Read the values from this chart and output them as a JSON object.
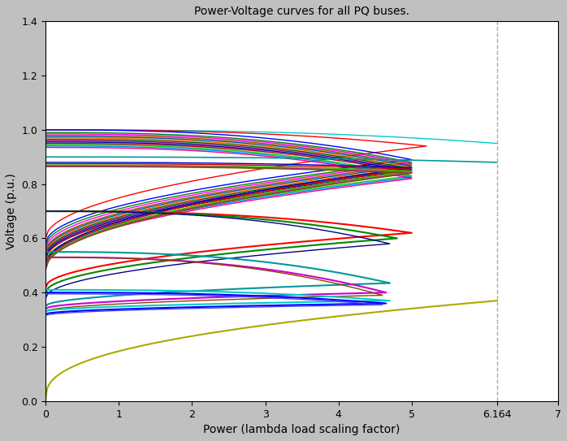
{
  "title": "Power-Voltage curves for all PQ buses.",
  "xlabel": "Power (lambda load scaling factor)",
  "ylabel": "Voltage (p.u.)",
  "xlim": [
    0,
    7
  ],
  "ylim": [
    0,
    1.4
  ],
  "xticks": [
    0,
    1,
    2,
    3,
    4,
    5,
    6.164,
    7
  ],
  "xticklabels": [
    "0",
    "1",
    "2",
    "3",
    "4",
    "5",
    "6.164",
    "7"
  ],
  "yticks": [
    0,
    0.2,
    0.4,
    0.6,
    0.8,
    1.0,
    1.2,
    1.4
  ],
  "vline_x": 6.164,
  "background_color": "#c0c0c0",
  "axes_bg": "#ffffff",
  "curves": [
    {
      "v0": 1.0,
      "v_nose": 0.95,
      "lambda_max": 6.164,
      "color": "#00cccc",
      "lw": 1.0,
      "upper_only": true
    },
    {
      "v0": 1.0,
      "v_nose": 0.94,
      "lambda_max": 5.2,
      "color": "#ff0000",
      "lw": 1.0,
      "upper_only": false,
      "v_low": 0.6
    },
    {
      "v0": 1.0,
      "v_nose": 0.89,
      "lambda_max": 5.0,
      "color": "#0000ff",
      "lw": 1.0,
      "upper_only": false,
      "v_low": 0.58
    },
    {
      "v0": 0.99,
      "v_nose": 0.88,
      "lambda_max": 5.0,
      "color": "#008800",
      "lw": 1.0,
      "upper_only": false,
      "v_low": 0.57
    },
    {
      "v0": 0.985,
      "v_nose": 0.875,
      "lambda_max": 5.0,
      "color": "#ff00ff",
      "lw": 1.0,
      "upper_only": false,
      "v_low": 0.56
    },
    {
      "v0": 0.98,
      "v_nose": 0.87,
      "lambda_max": 5.0,
      "color": "#aa5500",
      "lw": 1.0,
      "upper_only": false,
      "v_low": 0.55
    },
    {
      "v0": 0.975,
      "v_nose": 0.865,
      "lambda_max": 5.0,
      "color": "#0055aa",
      "lw": 1.0,
      "upper_only": false,
      "v_low": 0.545
    },
    {
      "v0": 0.97,
      "v_nose": 0.86,
      "lambda_max": 5.0,
      "color": "#ff6600",
      "lw": 1.0,
      "upper_only": false,
      "v_low": 0.54
    },
    {
      "v0": 0.965,
      "v_nose": 0.855,
      "lambda_max": 5.0,
      "color": "#006600",
      "lw": 1.0,
      "upper_only": false,
      "v_low": 0.535
    },
    {
      "v0": 0.96,
      "v_nose": 0.85,
      "lambda_max": 5.0,
      "color": "#880088",
      "lw": 1.0,
      "upper_only": false,
      "v_low": 0.53
    },
    {
      "v0": 0.955,
      "v_nose": 0.845,
      "lambda_max": 5.0,
      "color": "#0000aa",
      "lw": 1.0,
      "upper_only": false,
      "v_low": 0.525
    },
    {
      "v0": 0.95,
      "v_nose": 0.84,
      "lambda_max": 5.0,
      "color": "#aa0000",
      "lw": 1.0,
      "upper_only": false,
      "v_low": 0.52
    },
    {
      "v0": 0.945,
      "v_nose": 0.83,
      "lambda_max": 5.0,
      "color": "#00cc00",
      "lw": 1.0,
      "upper_only": false,
      "v_low": 0.51
    },
    {
      "v0": 0.94,
      "v_nose": 0.825,
      "lambda_max": 5.0,
      "color": "#0088ff",
      "lw": 1.0,
      "upper_only": false,
      "v_low": 0.505
    },
    {
      "v0": 0.935,
      "v_nose": 0.82,
      "lambda_max": 5.0,
      "color": "#ff0088",
      "lw": 1.0,
      "upper_only": false,
      "v_low": 0.5
    },
    {
      "v0": 0.9,
      "v_nose": 0.88,
      "lambda_max": 6.164,
      "color": "#009999",
      "lw": 1.2,
      "upper_only": true
    },
    {
      "v0": 0.88,
      "v_nose": 0.86,
      "lambda_max": 5.0,
      "color": "#0000cc",
      "lw": 1.0,
      "upper_only": false,
      "v_low": 0.5
    },
    {
      "v0": 0.875,
      "v_nose": 0.855,
      "lambda_max": 5.0,
      "color": "#cc0000",
      "lw": 1.0,
      "upper_only": false,
      "v_low": 0.495
    },
    {
      "v0": 0.87,
      "v_nose": 0.848,
      "lambda_max": 5.0,
      "color": "#00cc00",
      "lw": 1.0,
      "upper_only": false,
      "v_low": 0.49
    },
    {
      "v0": 0.868,
      "v_nose": 0.845,
      "lambda_max": 5.0,
      "color": "#999900",
      "lw": 1.0,
      "upper_only": false,
      "v_low": 0.488
    },
    {
      "v0": 0.866,
      "v_nose": 0.842,
      "lambda_max": 5.0,
      "color": "#cc00cc",
      "lw": 1.0,
      "upper_only": false,
      "v_low": 0.486
    },
    {
      "v0": 0.864,
      "v_nose": 0.84,
      "lambda_max": 5.0,
      "color": "#666600",
      "lw": 1.0,
      "upper_only": false,
      "v_low": 0.484
    },
    {
      "v0": 0.7,
      "v_nose": 0.62,
      "lambda_max": 5.0,
      "color": "#ff0000",
      "lw": 1.5,
      "upper_only": false,
      "v_low": 0.42
    },
    {
      "v0": 0.7,
      "v_nose": 0.6,
      "lambda_max": 4.8,
      "color": "#008800",
      "lw": 1.5,
      "upper_only": false,
      "v_low": 0.4
    },
    {
      "v0": 0.7,
      "v_nose": 0.58,
      "lambda_max": 4.7,
      "color": "#000088",
      "lw": 1.0,
      "upper_only": false,
      "v_low": 0.38
    },
    {
      "v0": 0.55,
      "v_nose": 0.435,
      "lambda_max": 4.7,
      "color": "#009999",
      "lw": 1.5,
      "upper_only": false,
      "v_low": 0.35
    },
    {
      "v0": 0.53,
      "v_nose": 0.4,
      "lambda_max": 4.65,
      "color": "#cc00cc",
      "lw": 1.5,
      "upper_only": false,
      "v_low": 0.34
    },
    {
      "v0": 0.53,
      "v_nose": 0.39,
      "lambda_max": 4.6,
      "color": "#884400",
      "lw": 1.0,
      "upper_only": false,
      "v_low": 0.33
    },
    {
      "v0": 0.41,
      "v_nose": 0.37,
      "lambda_max": 4.7,
      "color": "#00cccc",
      "lw": 1.5,
      "upper_only": false,
      "v_low": 0.33
    },
    {
      "v0": 0.4,
      "v_nose": 0.36,
      "lambda_max": 4.65,
      "color": "#0000ff",
      "lw": 1.5,
      "upper_only": false,
      "v_low": 0.32
    },
    {
      "v0": 0.395,
      "v_nose": 0.355,
      "lambda_max": 4.6,
      "color": "#4444ff",
      "lw": 1.0,
      "upper_only": false,
      "v_low": 0.315
    },
    {
      "v0": 0.01,
      "v_nose": 0.37,
      "lambda_max": 6.164,
      "color": "#aaaa00",
      "lw": 1.5,
      "upper_only": true,
      "rising": true
    }
  ]
}
